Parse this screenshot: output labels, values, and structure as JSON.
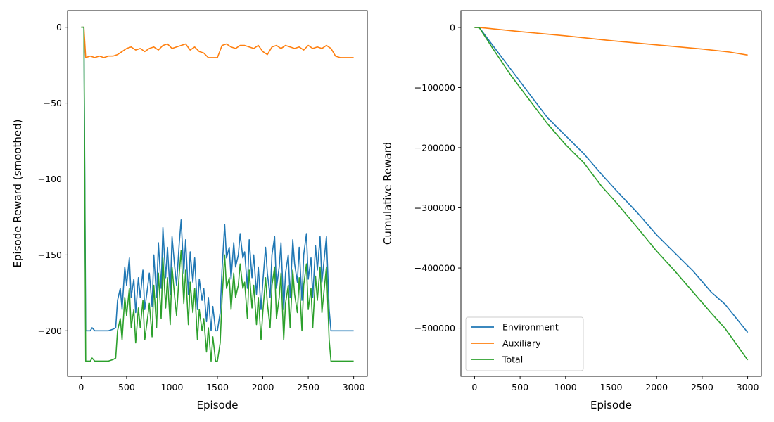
{
  "figure": {
    "colors": {
      "environment": "#1f77b4",
      "auxiliary": "#ff7f0e",
      "total": "#2ca02c"
    }
  },
  "chart_data": [
    {
      "type": "line",
      "xlabel": "Episode",
      "ylabel": "Episode Reward (smoothed)",
      "xlim": [
        -150,
        3150
      ],
      "ylim": [
        -230,
        11
      ],
      "xticks": [
        0,
        500,
        1000,
        1500,
        2000,
        2500,
        3000
      ],
      "xtick_labels": [
        "0",
        "500",
        "1000",
        "1500",
        "2000",
        "2500",
        "3000"
      ],
      "yticks": [
        0,
        -50,
        -100,
        -150,
        -200
      ],
      "ytick_labels": [
        "0",
        "−50",
        "−100",
        "−150",
        "−200"
      ],
      "grid": false,
      "series": [
        {
          "color": "#1f77b4",
          "x": [
            0,
            30,
            50,
            100,
            120,
            150,
            200,
            300,
            350,
            380,
            400,
            430,
            450,
            480,
            500,
            530,
            550,
            580,
            600,
            630,
            650,
            680,
            700,
            730,
            750,
            780,
            800,
            830,
            850,
            880,
            900,
            930,
            950,
            980,
            1000,
            1030,
            1050,
            1080,
            1100,
            1130,
            1150,
            1180,
            1200,
            1230,
            1250,
            1280,
            1300,
            1330,
            1350,
            1380,
            1400,
            1430,
            1450,
            1480,
            1500,
            1530,
            1550,
            1580,
            1600,
            1630,
            1650,
            1680,
            1700,
            1730,
            1750,
            1780,
            1800,
            1830,
            1850,
            1880,
            1900,
            1930,
            1950,
            1980,
            2000,
            2030,
            2050,
            2080,
            2100,
            2130,
            2150,
            2180,
            2200,
            2230,
            2250,
            2280,
            2300,
            2330,
            2350,
            2380,
            2400,
            2430,
            2450,
            2480,
            2500,
            2530,
            2550,
            2580,
            2600,
            2630,
            2650,
            2680,
            2700,
            2730,
            2750,
            2800,
            2850,
            2900,
            3000
          ],
          "values": [
            0,
            0,
            -200,
            -200,
            -198,
            -200,
            -200,
            -200,
            -199,
            -198,
            -180,
            -172,
            -186,
            -158,
            -170,
            -152,
            -178,
            -166,
            -188,
            -165,
            -178,
            -160,
            -186,
            -172,
            -162,
            -184,
            -150,
            -178,
            -142,
            -172,
            -132,
            -165,
            -145,
            -176,
            -138,
            -158,
            -170,
            -142,
            -127,
            -162,
            -140,
            -176,
            -148,
            -168,
            -152,
            -186,
            -166,
            -180,
            -172,
            -194,
            -178,
            -200,
            -184,
            -200,
            -200,
            -188,
            -160,
            -130,
            -152,
            -145,
            -166,
            -142,
            -158,
            -150,
            -136,
            -152,
            -148,
            -172,
            -140,
            -165,
            -150,
            -176,
            -158,
            -186,
            -168,
            -145,
            -162,
            -178,
            -150,
            -138,
            -172,
            -158,
            -142,
            -186,
            -162,
            -150,
            -178,
            -140,
            -156,
            -168,
            -145,
            -180,
            -150,
            -136,
            -166,
            -152,
            -178,
            -144,
            -160,
            -138,
            -168,
            -150,
            -138,
            -186,
            -200,
            -200,
            -200,
            -200,
            -200
          ]
        },
        {
          "color": "#ff7f0e",
          "x": [
            0,
            30,
            50,
            100,
            150,
            200,
            250,
            300,
            350,
            400,
            450,
            500,
            550,
            600,
            650,
            700,
            750,
            800,
            850,
            900,
            950,
            1000,
            1050,
            1100,
            1150,
            1200,
            1250,
            1300,
            1350,
            1400,
            1450,
            1500,
            1550,
            1600,
            1650,
            1700,
            1750,
            1800,
            1850,
            1900,
            1950,
            2000,
            2050,
            2100,
            2150,
            2200,
            2250,
            2300,
            2350,
            2400,
            2450,
            2500,
            2550,
            2600,
            2650,
            2700,
            2750,
            2800,
            2850,
            2900,
            3000
          ],
          "values": [
            0,
            0,
            -20,
            -19,
            -20,
            -19,
            -20,
            -19,
            -19,
            -18,
            -16,
            -14,
            -13,
            -15,
            -14,
            -16,
            -14,
            -13,
            -15,
            -12,
            -11,
            -14,
            -13,
            -12,
            -11,
            -15,
            -13,
            -16,
            -17,
            -20,
            -20,
            -20,
            -12,
            -11,
            -13,
            -14,
            -12,
            -12,
            -13,
            -14,
            -12,
            -16,
            -18,
            -13,
            -12,
            -14,
            -12,
            -13,
            -14,
            -13,
            -15,
            -12,
            -14,
            -13,
            -14,
            -12,
            -14,
            -19,
            -20,
            -20,
            -20
          ]
        },
        {
          "color": "#2ca02c",
          "x": [
            0,
            30,
            50,
            100,
            120,
            150,
            200,
            300,
            350,
            380,
            400,
            430,
            450,
            480,
            500,
            530,
            550,
            580,
            600,
            630,
            650,
            680,
            700,
            730,
            750,
            780,
            800,
            830,
            850,
            880,
            900,
            930,
            950,
            980,
            1000,
            1030,
            1050,
            1080,
            1100,
            1130,
            1150,
            1180,
            1200,
            1230,
            1250,
            1280,
            1300,
            1330,
            1350,
            1380,
            1400,
            1430,
            1450,
            1480,
            1500,
            1530,
            1550,
            1580,
            1600,
            1630,
            1650,
            1680,
            1700,
            1730,
            1750,
            1780,
            1800,
            1830,
            1850,
            1880,
            1900,
            1930,
            1950,
            1980,
            2000,
            2030,
            2050,
            2080,
            2100,
            2130,
            2150,
            2180,
            2200,
            2230,
            2250,
            2280,
            2300,
            2330,
            2350,
            2380,
            2400,
            2430,
            2450,
            2480,
            2500,
            2530,
            2550,
            2580,
            2600,
            2630,
            2650,
            2680,
            2700,
            2730,
            2750,
            2800,
            2850,
            2900,
            3000
          ],
          "values": [
            0,
            0,
            -220,
            -220,
            -218,
            -220,
            -220,
            -220,
            -219,
            -218,
            -200,
            -192,
            -206,
            -178,
            -190,
            -172,
            -198,
            -186,
            -208,
            -185,
            -198,
            -180,
            -206,
            -192,
            -182,
            -204,
            -170,
            -198,
            -162,
            -192,
            -152,
            -185,
            -165,
            -196,
            -158,
            -178,
            -190,
            -162,
            -147,
            -182,
            -160,
            -196,
            -168,
            -188,
            -172,
            -206,
            -186,
            -200,
            -192,
            -214,
            -198,
            -220,
            -204,
            -220,
            -220,
            -208,
            -180,
            -150,
            -172,
            -165,
            -186,
            -162,
            -178,
            -170,
            -156,
            -172,
            -168,
            -192,
            -160,
            -185,
            -170,
            -196,
            -178,
            -206,
            -188,
            -165,
            -182,
            -198,
            -170,
            -158,
            -192,
            -178,
            -162,
            -206,
            -182,
            -170,
            -198,
            -160,
            -176,
            -188,
            -165,
            -200,
            -170,
            -156,
            -186,
            -172,
            -198,
            -164,
            -180,
            -158,
            -188,
            -170,
            -158,
            -206,
            -220,
            -220,
            -220,
            -220,
            -220
          ]
        }
      ]
    },
    {
      "type": "line",
      "xlabel": "Episode",
      "ylabel": "Cumulative Reward",
      "xlim": [
        -150,
        3150
      ],
      "ylim": [
        -580000,
        28000
      ],
      "xticks": [
        0,
        500,
        1000,
        1500,
        2000,
        2500,
        3000
      ],
      "xtick_labels": [
        "0",
        "500",
        "1000",
        "1500",
        "2000",
        "2500",
        "3000"
      ],
      "yticks": [
        0,
        -100000,
        -200000,
        -300000,
        -400000,
        -500000
      ],
      "ytick_labels": [
        "0",
        "−100000",
        "−200000",
        "−300000",
        "−400000",
        "−500000"
      ],
      "grid": false,
      "legend": {
        "position": "lower-left",
        "entries": [
          "Environment",
          "Auxiliary",
          "Total"
        ]
      },
      "series": [
        {
          "name": "Environment",
          "color": "#1f77b4",
          "x": [
            0,
            50,
            200,
            400,
            600,
            800,
            1000,
            1200,
            1400,
            1550,
            1800,
            2000,
            2200,
            2400,
            2600,
            2750,
            3000
          ],
          "values": [
            0,
            0,
            -30000,
            -70000,
            -110000,
            -150000,
            -180000,
            -210000,
            -245000,
            -270000,
            -310000,
            -345000,
            -375000,
            -405000,
            -440000,
            -460000,
            -507000
          ]
        },
        {
          "name": "Auxiliary",
          "color": "#ff7f0e",
          "x": [
            0,
            50,
            500,
            1000,
            1500,
            2000,
            2500,
            2800,
            3000
          ],
          "values": [
            0,
            0,
            -7000,
            -14000,
            -22000,
            -29000,
            -36000,
            -41000,
            -46000
          ]
        },
        {
          "name": "Total",
          "color": "#2ca02c",
          "x": [
            0,
            50,
            200,
            400,
            600,
            800,
            1000,
            1200,
            1400,
            1550,
            1800,
            2000,
            2200,
            2400,
            2600,
            2750,
            3000
          ],
          "values": [
            0,
            0,
            -35000,
            -80000,
            -120000,
            -160000,
            -195000,
            -225000,
            -265000,
            -290000,
            -335000,
            -372000,
            -405000,
            -440000,
            -475000,
            -500000,
            -553000
          ]
        }
      ]
    }
  ]
}
